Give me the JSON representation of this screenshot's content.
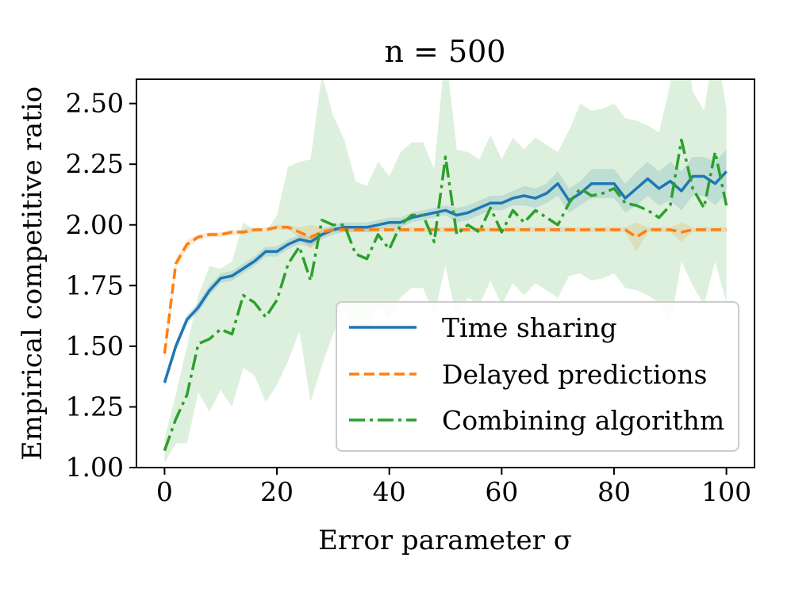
{
  "chart_data": {
    "type": "line",
    "title": "n = 500",
    "xlabel": "Error parameter σ",
    "ylabel": "Empirical competitive ratio",
    "xlim": [
      -5,
      105
    ],
    "ylim": [
      1.0,
      2.6
    ],
    "xticks": [
      0,
      20,
      40,
      60,
      80,
      100
    ],
    "xtick_labels": [
      "0",
      "20",
      "40",
      "60",
      "80",
      "100"
    ],
    "yticks": [
      1.0,
      1.25,
      1.5,
      1.75,
      2.0,
      2.25,
      2.5
    ],
    "ytick_labels": [
      "1.00",
      "1.25",
      "1.50",
      "1.75",
      "2.00",
      "2.25",
      "2.50"
    ],
    "grid": false,
    "legend_position": "lower-right",
    "x": [
      0,
      2,
      4,
      6,
      8,
      10,
      12,
      14,
      16,
      18,
      20,
      22,
      24,
      26,
      28,
      30,
      32,
      34,
      36,
      38,
      40,
      42,
      44,
      46,
      48,
      50,
      52,
      54,
      56,
      58,
      60,
      62,
      64,
      66,
      68,
      70,
      72,
      74,
      76,
      78,
      80,
      82,
      84,
      86,
      88,
      90,
      92,
      94,
      96,
      98,
      100
    ],
    "series": [
      {
        "name": "Time sharing",
        "color": "#1f77b4",
        "style": "solid",
        "values": [
          1.35,
          1.5,
          1.61,
          1.66,
          1.73,
          1.78,
          1.79,
          1.82,
          1.85,
          1.89,
          1.89,
          1.92,
          1.94,
          1.93,
          1.96,
          1.98,
          1.99,
          1.99,
          1.99,
          2.0,
          2.01,
          2.01,
          2.03,
          2.04,
          2.05,
          2.06,
          2.04,
          2.05,
          2.07,
          2.09,
          2.09,
          2.11,
          2.12,
          2.11,
          2.13,
          2.17,
          2.1,
          2.13,
          2.17,
          2.17,
          2.17,
          2.11,
          2.15,
          2.19,
          2.15,
          2.18,
          2.14,
          2.2,
          2.2,
          2.17,
          2.22
        ],
        "band_halfwidth": [
          0.02,
          0.02,
          0.02,
          0.02,
          0.02,
          0.02,
          0.02,
          0.02,
          0.02,
          0.02,
          0.02,
          0.02,
          0.02,
          0.02,
          0.02,
          0.02,
          0.02,
          0.02,
          0.02,
          0.02,
          0.02,
          0.02,
          0.02,
          0.02,
          0.02,
          0.02,
          0.03,
          0.03,
          0.03,
          0.03,
          0.03,
          0.03,
          0.04,
          0.04,
          0.04,
          0.05,
          0.05,
          0.05,
          0.06,
          0.06,
          0.06,
          0.06,
          0.07,
          0.07,
          0.07,
          0.08,
          0.08,
          0.08,
          0.08,
          0.09,
          0.09
        ]
      },
      {
        "name": "Delayed predictions",
        "color": "#ff7f0e",
        "style": "dashed",
        "values": [
          1.47,
          1.84,
          1.92,
          1.95,
          1.96,
          1.96,
          1.97,
          1.97,
          1.98,
          1.98,
          1.99,
          1.99,
          1.97,
          1.95,
          1.97,
          1.98,
          1.98,
          1.98,
          1.98,
          1.98,
          1.98,
          1.98,
          1.98,
          1.98,
          1.98,
          1.98,
          1.98,
          1.98,
          1.98,
          1.98,
          1.98,
          1.98,
          1.98,
          1.98,
          1.98,
          1.98,
          1.98,
          1.98,
          1.98,
          1.98,
          1.98,
          1.98,
          1.95,
          1.98,
          1.98,
          1.98,
          1.97,
          1.98,
          1.98,
          1.98,
          1.98
        ],
        "band_halfwidth": [
          0.03,
          0.02,
          0.02,
          0.01,
          0.01,
          0.01,
          0.01,
          0.01,
          0.01,
          0.01,
          0.01,
          0.01,
          0.02,
          0.05,
          0.02,
          0.01,
          0.01,
          0.01,
          0.01,
          0.01,
          0.01,
          0.01,
          0.01,
          0.01,
          0.01,
          0.01,
          0.01,
          0.01,
          0.01,
          0.01,
          0.01,
          0.01,
          0.01,
          0.01,
          0.01,
          0.01,
          0.01,
          0.01,
          0.01,
          0.01,
          0.01,
          0.01,
          0.06,
          0.01,
          0.01,
          0.01,
          0.04,
          0.01,
          0.01,
          0.01,
          0.01
        ]
      },
      {
        "name": "Combining algorithm",
        "color": "#2ca02c",
        "style": "dashdot",
        "values": [
          1.07,
          1.2,
          1.3,
          1.51,
          1.53,
          1.57,
          1.55,
          1.71,
          1.68,
          1.62,
          1.69,
          1.84,
          1.91,
          1.77,
          2.02,
          2.0,
          2.0,
          1.88,
          1.86,
          1.96,
          1.9,
          2.0,
          2.04,
          2.04,
          1.93,
          2.28,
          1.96,
          2.0,
          1.97,
          2.07,
          1.97,
          2.06,
          2.01,
          2.06,
          2.03,
          2.0,
          2.09,
          2.15,
          2.12,
          2.13,
          2.15,
          2.09,
          2.08,
          2.06,
          2.03,
          2.08,
          2.35,
          2.15,
          2.07,
          2.3,
          2.08
        ],
        "band_halfwidth": [
          0.05,
          0.1,
          0.2,
          0.2,
          0.3,
          0.25,
          0.3,
          0.3,
          0.3,
          0.35,
          0.35,
          0.4,
          0.35,
          0.5,
          0.6,
          0.45,
          0.35,
          0.3,
          0.3,
          0.3,
          0.3,
          0.3,
          0.3,
          0.3,
          0.3,
          0.45,
          0.35,
          0.3,
          0.3,
          0.3,
          0.3,
          0.3,
          0.3,
          0.3,
          0.3,
          0.3,
          0.3,
          0.35,
          0.35,
          0.35,
          0.35,
          0.35,
          0.35,
          0.35,
          0.35,
          0.5,
          0.5,
          0.4,
          0.4,
          0.45,
          0.4
        ]
      }
    ]
  }
}
